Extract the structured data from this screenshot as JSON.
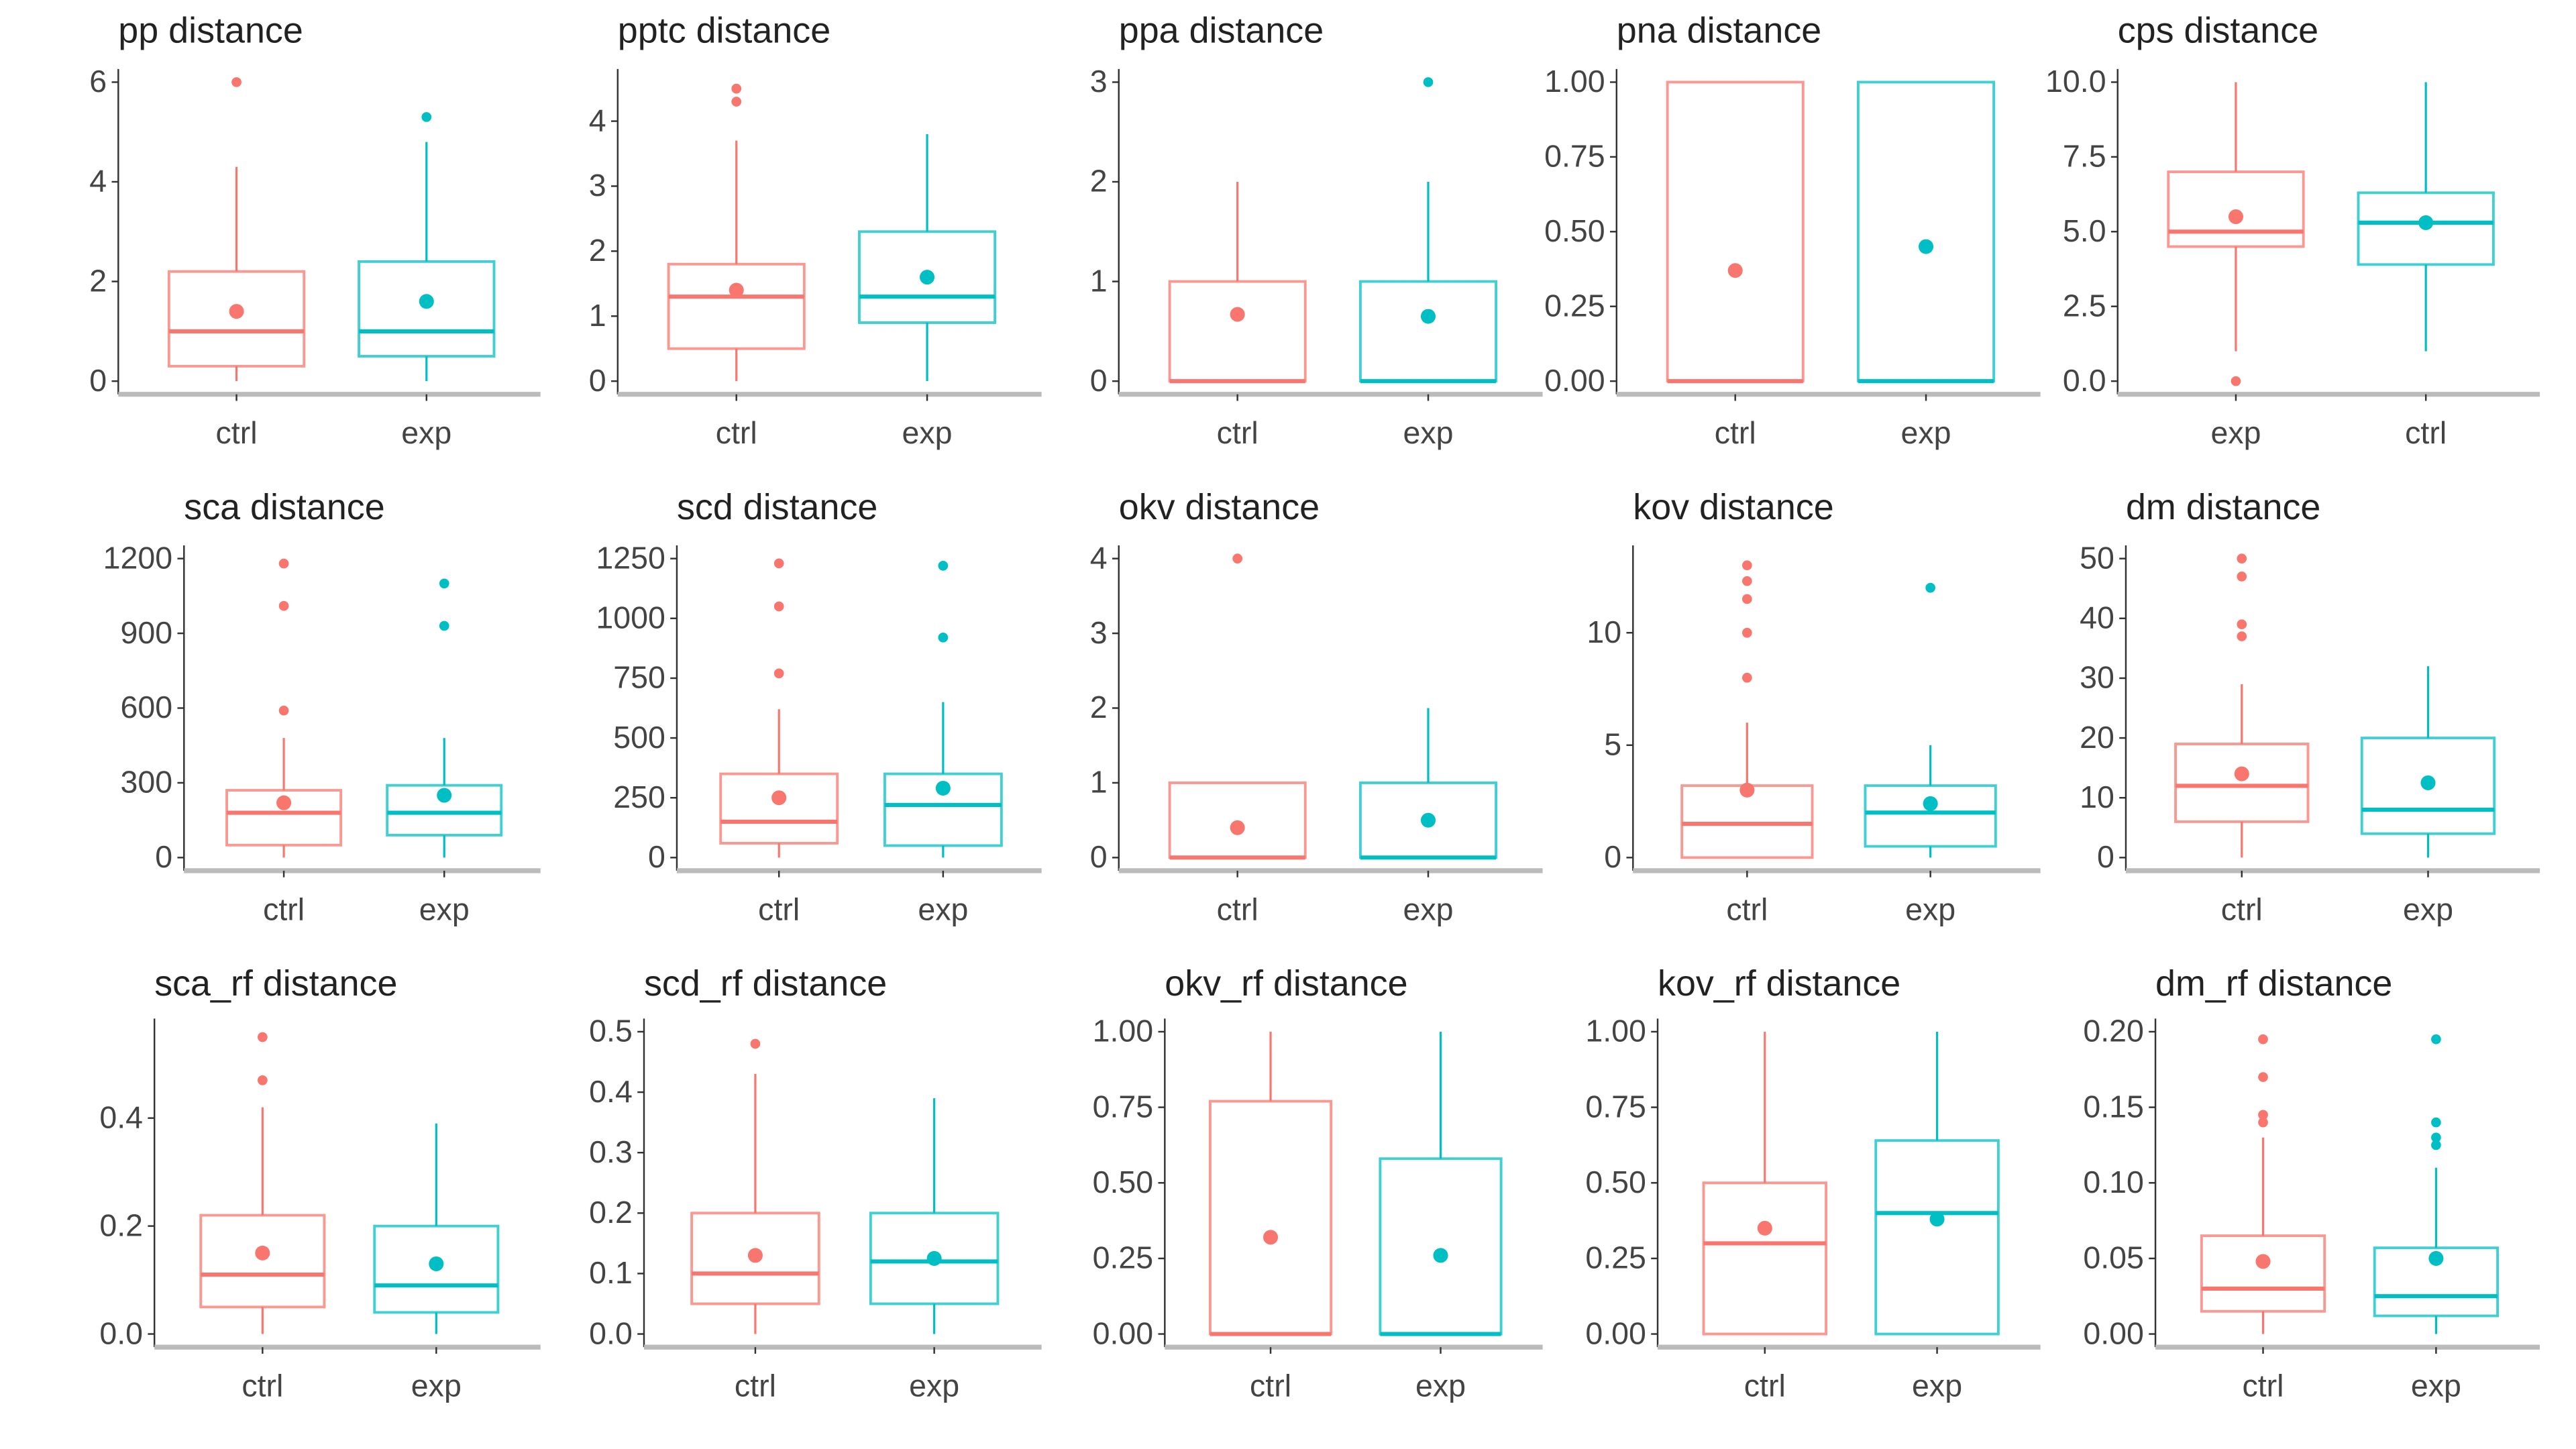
{
  "colors": {
    "ctrl": "#F8766D",
    "exp": "#00BFC4",
    "axis": "#333333",
    "baseline": "#BBBBBB"
  },
  "chart_data": [
    {
      "type": "box",
      "title": "pp distance",
      "categories": [
        "ctrl",
        "exp"
      ],
      "ylim": [
        0,
        6
      ],
      "ticks": [
        0,
        2,
        4,
        6
      ],
      "grid": false,
      "boxes": [
        {
          "q1": 0.3,
          "median": 1.0,
          "q3": 2.2,
          "lo": 0,
          "hi": 4.3,
          "mean": 1.4,
          "outliers": [
            6
          ]
        },
        {
          "q1": 0.5,
          "median": 1.0,
          "q3": 2.4,
          "lo": 0,
          "hi": 4.8,
          "mean": 1.6,
          "outliers": [
            5.3
          ]
        }
      ]
    },
    {
      "type": "box",
      "title": "pptc distance",
      "categories": [
        "ctrl",
        "exp"
      ],
      "ylim": [
        0,
        4.6
      ],
      "ticks": [
        0,
        1,
        2,
        3,
        4
      ],
      "grid": false,
      "boxes": [
        {
          "q1": 0.5,
          "median": 1.3,
          "q3": 1.8,
          "lo": 0,
          "hi": 3.7,
          "mean": 1.4,
          "outliers": [
            4.3,
            4.5
          ]
        },
        {
          "q1": 0.9,
          "median": 1.3,
          "q3": 2.3,
          "lo": 0,
          "hi": 3.8,
          "mean": 1.6,
          "outliers": []
        }
      ]
    },
    {
      "type": "box",
      "title": "ppa distance",
      "categories": [
        "ctrl",
        "exp"
      ],
      "ylim": [
        0,
        3
      ],
      "ticks": [
        0,
        1,
        2,
        3
      ],
      "grid": false,
      "boxes": [
        {
          "q1": 0,
          "median": 0,
          "q3": 1,
          "lo": 0,
          "hi": 2,
          "mean": 0.67,
          "outliers": []
        },
        {
          "q1": 0,
          "median": 0,
          "q3": 1,
          "lo": 0,
          "hi": 2,
          "mean": 0.65,
          "outliers": [
            3
          ]
        }
      ]
    },
    {
      "type": "box",
      "title": "pna distance",
      "categories": [
        "ctrl",
        "exp"
      ],
      "ylim": [
        0,
        1
      ],
      "ticks": [
        "0.00",
        "0.25",
        "0.50",
        "0.75",
        "1.00"
      ],
      "grid": false,
      "boxes": [
        {
          "q1": 0,
          "median": 0,
          "q3": 1,
          "lo": 0,
          "hi": 1,
          "mean": 0.37,
          "outliers": []
        },
        {
          "q1": 0,
          "median": 0,
          "q3": 1,
          "lo": 0,
          "hi": 1,
          "mean": 0.45,
          "outliers": []
        }
      ]
    },
    {
      "type": "box",
      "title": "cps distance",
      "categories": [
        "exp",
        "ctrl"
      ],
      "ylim": [
        0,
        10
      ],
      "ticks": [
        "0.0",
        "2.5",
        "5.0",
        "7.5",
        "10.0"
      ],
      "grid": false,
      "boxes": [
        {
          "q1": 4.5,
          "median": 5.0,
          "q3": 7.0,
          "lo": 1,
          "hi": 10,
          "mean": 5.5,
          "outliers": [
            0
          ]
        },
        {
          "q1": 3.9,
          "median": 5.3,
          "q3": 6.3,
          "lo": 1,
          "hi": 10,
          "mean": 5.3,
          "outliers": []
        }
      ]
    },
    {
      "type": "box",
      "title": "sca distance",
      "categories": [
        "ctrl",
        "exp"
      ],
      "ylim": [
        0,
        1200
      ],
      "ticks": [
        0,
        300,
        600,
        900,
        1200
      ],
      "grid": false,
      "boxes": [
        {
          "q1": 50,
          "median": 180,
          "q3": 270,
          "lo": 0,
          "hi": 480,
          "mean": 220,
          "outliers": [
            590,
            1010,
            1180
          ]
        },
        {
          "q1": 90,
          "median": 180,
          "q3": 290,
          "lo": 0,
          "hi": 480,
          "mean": 250,
          "outliers": [
            930,
            1100
          ]
        }
      ]
    },
    {
      "type": "box",
      "title": "scd distance",
      "categories": [
        "ctrl",
        "exp"
      ],
      "ylim": [
        0,
        1250
      ],
      "ticks": [
        0,
        250,
        500,
        750,
        1000,
        1250
      ],
      "grid": false,
      "boxes": [
        {
          "q1": 60,
          "median": 150,
          "q3": 350,
          "lo": 0,
          "hi": 620,
          "mean": 250,
          "outliers": [
            770,
            1050,
            1230
          ]
        },
        {
          "q1": 50,
          "median": 220,
          "q3": 350,
          "lo": 0,
          "hi": 650,
          "mean": 290,
          "outliers": [
            920,
            1220
          ]
        }
      ]
    },
    {
      "type": "box",
      "title": "okv distance",
      "categories": [
        "ctrl",
        "exp"
      ],
      "ylim": [
        0,
        4
      ],
      "ticks": [
        0,
        1,
        2,
        3,
        4
      ],
      "grid": false,
      "boxes": [
        {
          "q1": 0,
          "median": 0,
          "q3": 1,
          "lo": 0,
          "hi": 1,
          "mean": 0.4,
          "outliers": [
            4
          ]
        },
        {
          "q1": 0,
          "median": 0,
          "q3": 1,
          "lo": 0,
          "hi": 2,
          "mean": 0.5,
          "outliers": []
        }
      ]
    },
    {
      "type": "box",
      "title": "kov distance",
      "categories": [
        "ctrl",
        "exp"
      ],
      "ylim": [
        0,
        13.3
      ],
      "ticks": [
        0,
        5,
        10
      ],
      "grid": false,
      "boxes": [
        {
          "q1": 0,
          "median": 1.5,
          "q3": 3.2,
          "lo": 0,
          "hi": 6,
          "mean": 3,
          "outliers": [
            8,
            10,
            11.5,
            12.3,
            13
          ]
        },
        {
          "q1": 0.5,
          "median": 2,
          "q3": 3.2,
          "lo": 0,
          "hi": 5,
          "mean": 2.4,
          "outliers": [
            12
          ]
        }
      ]
    },
    {
      "type": "box",
      "title": "dm distance",
      "categories": [
        "ctrl",
        "exp"
      ],
      "ylim": [
        0,
        50
      ],
      "ticks": [
        0,
        10,
        20,
        30,
        40,
        50
      ],
      "grid": false,
      "boxes": [
        {
          "q1": 6,
          "median": 12,
          "q3": 19,
          "lo": 0,
          "hi": 29,
          "mean": 14,
          "outliers": [
            37,
            39,
            47,
            50
          ]
        },
        {
          "q1": 4,
          "median": 8,
          "q3": 20,
          "lo": 0,
          "hi": 32,
          "mean": 12.5,
          "outliers": []
        }
      ]
    },
    {
      "type": "box",
      "title": "sca_rf distance",
      "categories": [
        "ctrl",
        "exp"
      ],
      "ylim": [
        0,
        0.56
      ],
      "ticks": [
        "0.0",
        "0.2",
        "0.4"
      ],
      "grid": false,
      "boxes": [
        {
          "q1": 0.05,
          "median": 0.11,
          "q3": 0.22,
          "lo": 0,
          "hi": 0.42,
          "mean": 0.15,
          "outliers": [
            0.47,
            0.55
          ]
        },
        {
          "q1": 0.04,
          "median": 0.09,
          "q3": 0.2,
          "lo": 0,
          "hi": 0.39,
          "mean": 0.13,
          "outliers": []
        }
      ]
    },
    {
      "type": "box",
      "title": "scd_rf distance",
      "categories": [
        "ctrl",
        "exp"
      ],
      "ylim": [
        0,
        0.5
      ],
      "ticks": [
        "0.0",
        "0.1",
        "0.2",
        "0.3",
        "0.4",
        "0.5"
      ],
      "grid": false,
      "boxes": [
        {
          "q1": 0.05,
          "median": 0.1,
          "q3": 0.2,
          "lo": 0,
          "hi": 0.43,
          "mean": 0.13,
          "outliers": [
            0.48
          ]
        },
        {
          "q1": 0.05,
          "median": 0.12,
          "q3": 0.2,
          "lo": 0,
          "hi": 0.39,
          "mean": 0.125,
          "outliers": []
        }
      ]
    },
    {
      "type": "box",
      "title": "okv_rf distance",
      "categories": [
        "ctrl",
        "exp"
      ],
      "ylim": [
        0,
        1
      ],
      "ticks": [
        "0.00",
        "0.25",
        "0.50",
        "0.75",
        "1.00"
      ],
      "grid": false,
      "boxes": [
        {
          "q1": 0,
          "median": 0,
          "q3": 0.77,
          "lo": 0,
          "hi": 1,
          "mean": 0.32,
          "outliers": []
        },
        {
          "q1": 0,
          "median": 0,
          "q3": 0.58,
          "lo": 0,
          "hi": 1,
          "mean": 0.26,
          "outliers": []
        }
      ]
    },
    {
      "type": "box",
      "title": "kov_rf distance",
      "categories": [
        "ctrl",
        "exp"
      ],
      "ylim": [
        0,
        1
      ],
      "ticks": [
        "0.00",
        "0.25",
        "0.50",
        "0.75",
        "1.00"
      ],
      "grid": false,
      "boxes": [
        {
          "q1": 0,
          "median": 0.3,
          "q3": 0.5,
          "lo": 0,
          "hi": 1,
          "mean": 0.35,
          "outliers": []
        },
        {
          "q1": 0,
          "median": 0.4,
          "q3": 0.64,
          "lo": 0,
          "hi": 1,
          "mean": 0.38,
          "outliers": []
        }
      ]
    },
    {
      "type": "box",
      "title": "dm_rf distance",
      "categories": [
        "ctrl",
        "exp"
      ],
      "ylim": [
        0,
        0.2
      ],
      "ticks": [
        "0.00",
        "0.05",
        "0.10",
        "0.15",
        "0.20"
      ],
      "grid": false,
      "boxes": [
        {
          "q1": 0.015,
          "median": 0.03,
          "q3": 0.065,
          "lo": 0,
          "hi": 0.13,
          "mean": 0.048,
          "outliers": [
            0.14,
            0.145,
            0.17,
            0.195
          ]
        },
        {
          "q1": 0.012,
          "median": 0.025,
          "q3": 0.057,
          "lo": 0,
          "hi": 0.11,
          "mean": 0.05,
          "outliers": [
            0.125,
            0.13,
            0.14,
            0.195
          ]
        }
      ]
    }
  ]
}
